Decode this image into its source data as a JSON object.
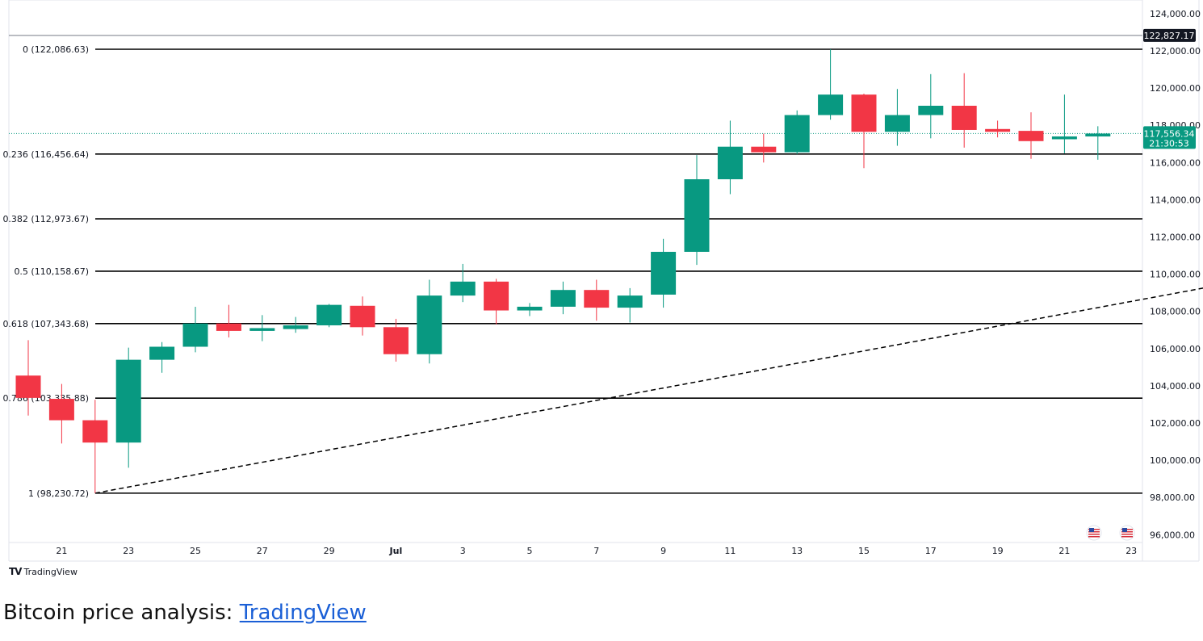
{
  "chart_data": {
    "type": "candlestick",
    "title": "",
    "xlabel": "",
    "ylabel": "",
    "ylim": [
      95000,
      124500
    ],
    "y_ticks": [
      "96,000.00",
      "98,000.00",
      "100,000.00",
      "102,000.00",
      "104,000.00",
      "106,000.00",
      "108,000.00",
      "110,000.00",
      "112,000.00",
      "114,000.00",
      "116,000.00",
      "118,000.00",
      "120,000.00",
      "122,000.00",
      "124,000.00"
    ],
    "x_ticks": [
      {
        "day": 1,
        "label": "21"
      },
      {
        "day": 3,
        "label": "23"
      },
      {
        "day": 5,
        "label": "25"
      },
      {
        "day": 7,
        "label": "27"
      },
      {
        "day": 9,
        "label": "29"
      },
      {
        "day": 11,
        "label": "Jul"
      },
      {
        "day": 13,
        "label": "3"
      },
      {
        "day": 15,
        "label": "5"
      },
      {
        "day": 17,
        "label": "7"
      },
      {
        "day": 19,
        "label": "9"
      },
      {
        "day": 21,
        "label": "11"
      },
      {
        "day": 23,
        "label": "13"
      },
      {
        "day": 25,
        "label": "15"
      },
      {
        "day": 27,
        "label": "17"
      },
      {
        "day": 29,
        "label": "19"
      },
      {
        "day": 31,
        "label": "21"
      },
      {
        "day": 33,
        "label": "23"
      }
    ],
    "candles": [
      {
        "day": 0,
        "open": 104550,
        "high": 106450,
        "low": 102400,
        "close": 103350
      },
      {
        "day": 1,
        "open": 103300,
        "high": 104100,
        "low": 100900,
        "close": 102150
      },
      {
        "day": 2,
        "open": 102150,
        "high": 103250,
        "low": 98230,
        "close": 100950
      },
      {
        "day": 3,
        "open": 100950,
        "high": 106050,
        "low": 99600,
        "close": 105400
      },
      {
        "day": 4,
        "open": 105400,
        "high": 106350,
        "low": 104700,
        "close": 106100
      },
      {
        "day": 5,
        "open": 106100,
        "high": 108250,
        "low": 105800,
        "close": 107350
      },
      {
        "day": 6,
        "open": 107350,
        "high": 108350,
        "low": 106600,
        "close": 106950
      },
      {
        "day": 7,
        "open": 106950,
        "high": 107800,
        "low": 106400,
        "close": 107100
      },
      {
        "day": 8,
        "open": 107050,
        "high": 107700,
        "low": 106850,
        "close": 107250
      },
      {
        "day": 9,
        "open": 107250,
        "high": 108400,
        "low": 107150,
        "close": 108350
      },
      {
        "day": 10,
        "open": 108300,
        "high": 108800,
        "low": 106700,
        "close": 107150
      },
      {
        "day": 11,
        "open": 107150,
        "high": 107600,
        "low": 105300,
        "close": 105700
      },
      {
        "day": 12,
        "open": 105700,
        "high": 109700,
        "low": 105200,
        "close": 108850
      },
      {
        "day": 13,
        "open": 108850,
        "high": 110550,
        "low": 108500,
        "close": 109600
      },
      {
        "day": 14,
        "open": 109600,
        "high": 109750,
        "low": 107300,
        "close": 108050
      },
      {
        "day": 15,
        "open": 108050,
        "high": 108450,
        "low": 107750,
        "close": 108250
      },
      {
        "day": 16,
        "open": 108250,
        "high": 109600,
        "low": 107850,
        "close": 109150
      },
      {
        "day": 17,
        "open": 109150,
        "high": 109700,
        "low": 107500,
        "close": 108200
      },
      {
        "day": 18,
        "open": 108200,
        "high": 109250,
        "low": 107400,
        "close": 108850
      },
      {
        "day": 19,
        "open": 108900,
        "high": 111900,
        "low": 108200,
        "close": 111200
      },
      {
        "day": 20,
        "open": 111200,
        "high": 116400,
        "low": 110500,
        "close": 115100
      },
      {
        "day": 21,
        "open": 115100,
        "high": 118250,
        "low": 114300,
        "close": 116850
      },
      {
        "day": 22,
        "open": 116850,
        "high": 117550,
        "low": 116000,
        "close": 116550
      },
      {
        "day": 23,
        "open": 116550,
        "high": 118800,
        "low": 116450,
        "close": 118550
      },
      {
        "day": 24,
        "open": 118550,
        "high": 122086,
        "low": 118300,
        "close": 119650
      },
      {
        "day": 25,
        "open": 119650,
        "high": 119700,
        "low": 115700,
        "close": 117650
      },
      {
        "day": 26,
        "open": 117650,
        "high": 119950,
        "low": 116900,
        "close": 118550
      },
      {
        "day": 27,
        "open": 118550,
        "high": 120750,
        "low": 117300,
        "close": 119050
      },
      {
        "day": 28,
        "open": 119050,
        "high": 120800,
        "low": 116800,
        "close": 117750
      },
      {
        "day": 29,
        "open": 117800,
        "high": 118250,
        "low": 117350,
        "close": 117650
      },
      {
        "day": 30,
        "open": 117700,
        "high": 118700,
        "low": 116200,
        "close": 117150
      },
      {
        "day": 31,
        "open": 117250,
        "high": 119650,
        "low": 116500,
        "close": 117400
      },
      {
        "day": 32,
        "open": 117400,
        "high": 117950,
        "low": 116150,
        "close": 117556
      }
    ],
    "fib_levels": [
      {
        "label": "0 (122,086.63)",
        "value": 122086.63
      },
      {
        "label": "0.236 (116,456.64)",
        "value": 116456.64
      },
      {
        "label": "0.382 (112,973.67)",
        "value": 112973.67
      },
      {
        "label": "0.5 (110,158.67)",
        "value": 110158.67
      },
      {
        "label": "0.618 (107,343.68)",
        "value": 107343.68
      },
      {
        "label": "0.786 (103,335.88)",
        "value": 103335.88
      },
      {
        "label": "1 (98,230.72)",
        "value": 98230.72
      }
    ],
    "trendline": {
      "start": {
        "day": 2,
        "value": 98230
      },
      "end": {
        "day": 35.6,
        "value": 109400
      }
    },
    "top_line": {
      "value": 122827.17,
      "label": "122,827.17"
    },
    "last_price": {
      "value": 117556.34,
      "label": "117,556.34",
      "countdown": "21:30:53"
    },
    "colors": {
      "up": "#089981",
      "down": "#f23645",
      "fib": "#000000",
      "grid": "#f0f3fa",
      "text": "#131722"
    }
  },
  "branding": {
    "tradingview": "TradingView"
  },
  "caption": {
    "text": "Bitcoin price analysis: ",
    "link_text": "TradingView"
  }
}
